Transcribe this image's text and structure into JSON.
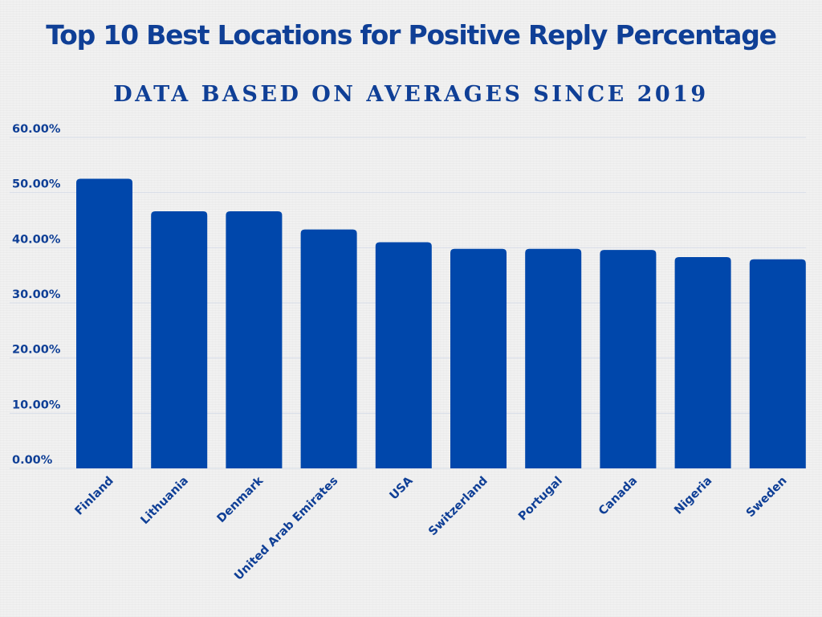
{
  "chart_data": {
    "type": "bar",
    "title": "Top 10 Best Locations for Positive Reply Percentage",
    "subtitle": "DATA BASED ON AVERAGES SINCE 2019",
    "xlabel": "",
    "ylabel": "",
    "categories": [
      "Finland",
      "Lithuania",
      "Denmark",
      "United Arab Emirates",
      "USA",
      "Switzerland",
      "Portugal",
      "Canada",
      "Nigeria",
      "Sweden"
    ],
    "values": [
      52.5,
      46.6,
      46.6,
      43.3,
      41.0,
      39.8,
      39.8,
      39.6,
      38.3,
      37.9
    ],
    "ylim": [
      0,
      60
    ],
    "yticks": [
      0,
      10,
      20,
      30,
      40,
      50,
      60
    ],
    "ytick_labels": [
      "0.00%",
      "10.00%",
      "20.00%",
      "30.00%",
      "40.00%",
      "50.00%",
      "60.00%"
    ],
    "grid": true,
    "legend": "none",
    "bar_color": "#0047ab",
    "text_color": "#0f3f96",
    "grid_color": "#d7dde8"
  }
}
